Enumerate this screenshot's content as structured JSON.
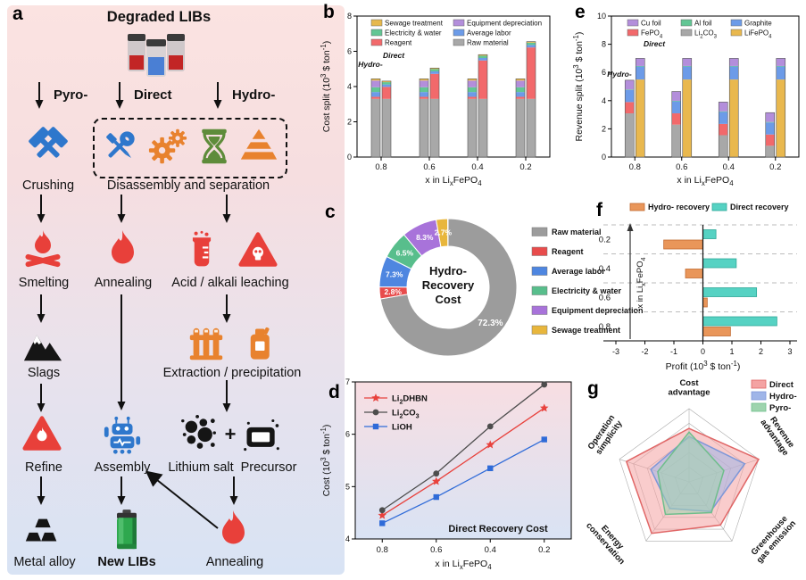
{
  "panels": {
    "a": {
      "label": "a",
      "title": "Degraded LIBs",
      "routes": [
        "Pyro-",
        "Direct",
        "Hydro-"
      ],
      "nodes": {
        "crushing": "Crushing",
        "disassembly": "Disassembly and separation",
        "smelting": "Smelting",
        "annealing": "Annealing",
        "leaching": "Acid / alkali leaching",
        "slags": "Slags",
        "extraction": "Extraction / precipitation",
        "refine": "Refine",
        "assembly": "Assembly",
        "lithium_salt": "Lithium salt",
        "plus": "+",
        "precursor": "Precursor",
        "metal_alloy": "Metal alloy",
        "new_libs": "New LIBs",
        "annealing2": "Annealing"
      },
      "icon_names": [
        "degraded-battery-icon",
        "crossed-hammers-icon",
        "wrench-screwdriver-icon",
        "gears-icon",
        "hourglass-icon",
        "pyramid-icon",
        "campfire-icon",
        "flame-icon",
        "beaker-icon",
        "hazard-skull-icon",
        "mountain-icon",
        "test-tubes-icon",
        "canister-icon",
        "refine-triangle-flame-icon",
        "robot-icon",
        "salt-bubbles-icon",
        "precursor-plate-icon",
        "metal-ingots-icon",
        "new-battery-icon",
        "flame-icon"
      ]
    },
    "b": {
      "label": "b"
    },
    "c": {
      "label": "c"
    },
    "d": {
      "label": "d"
    },
    "e": {
      "label": "e"
    },
    "f": {
      "label": "f"
    },
    "g": {
      "label": "g"
    }
  },
  "chart_data": [
    {
      "id": "cost_split",
      "type": "bar",
      "subtype": "grouped-stacked",
      "title": "",
      "ylabel": "Cost split (10^{3} $ ton^{-1})",
      "xlabel": "x in Li_{x}FePO_{4}",
      "ylim": [
        0,
        8
      ],
      "yticks": [
        0,
        2,
        4,
        6,
        8
      ],
      "categories": [
        "0.8",
        "0.6",
        "0.4",
        "0.2"
      ],
      "group_labels": [
        "Hydro-",
        "Direct"
      ],
      "segments": [
        {
          "name": "Raw material",
          "color": "#a8a8a8",
          "hydro": [
            3.3,
            3.3,
            3.3,
            3.3
          ],
          "direct": [
            3.3,
            3.3,
            3.3,
            3.3
          ]
        },
        {
          "name": "Reagent",
          "color": "#f2696b",
          "hydro": [
            0.12,
            0.12,
            0.12,
            0.12
          ],
          "direct": [
            0.68,
            1.42,
            2.18,
            2.92
          ]
        },
        {
          "name": "Average labor",
          "color": "#6c9be8",
          "hydro": [
            0.27,
            0.27,
            0.27,
            0.27
          ],
          "direct": [
            0.14,
            0.14,
            0.14,
            0.14
          ]
        },
        {
          "name": "Electricity & water",
          "color": "#62c694",
          "hydro": [
            0.27,
            0.27,
            0.27,
            0.27
          ],
          "direct": [
            0.13,
            0.13,
            0.13,
            0.13
          ]
        },
        {
          "name": "Equipment depreciation",
          "color": "#b38edb",
          "hydro": [
            0.38,
            0.38,
            0.38,
            0.38
          ],
          "direct": [
            0,
            0,
            0,
            0
          ]
        },
        {
          "name": "Sewage treatment",
          "color": "#e6b84c",
          "hydro": [
            0.1,
            0.1,
            0.1,
            0.1
          ],
          "direct": [
            0.06,
            0.06,
            0.06,
            0.06
          ]
        }
      ],
      "legend_order": [
        "Sewage treatment",
        "Electricity & water",
        "Reagent",
        "Equipment depreciation",
        "Average labor",
        "Raw material"
      ]
    },
    {
      "id": "hydro_donut",
      "type": "pie",
      "subtype": "donut",
      "center_label": [
        "Hydro-",
        "Recovery",
        "Cost"
      ],
      "slices": [
        {
          "name": "Raw material",
          "pct": 72.3,
          "color": "#9c9c9c"
        },
        {
          "name": "Reagent",
          "pct": 2.8,
          "color": "#e84c4c"
        },
        {
          "name": "Average labor",
          "pct": 7.3,
          "color": "#4e86e0"
        },
        {
          "name": "Electricity & water",
          "pct": 6.5,
          "color": "#58be8c"
        },
        {
          "name": "Equipment depreciation",
          "pct": 8.3,
          "color": "#a873da"
        },
        {
          "name": "Sewage treatment",
          "pct": 2.7,
          "color": "#e8b63c"
        }
      ],
      "legend_order": [
        "Raw material",
        "Reagent",
        "Average labor",
        "Electricity & water",
        "Equipment depreciation",
        "Sewage treatment"
      ]
    },
    {
      "id": "direct_cost",
      "type": "line",
      "ylabel": "Cost (10^{3} $ ton^{-1})",
      "xlabel": "x in Li_{x}FePO_{4}",
      "ylim": [
        4,
        7
      ],
      "yticks": [
        4,
        5,
        6,
        7
      ],
      "categories": [
        "0.8",
        "0.6",
        "0.4",
        "0.2"
      ],
      "annotation": "Direct Recovery Cost",
      "series": [
        {
          "name": "Li_{2}DHBN",
          "color": "#e8413c",
          "marker": "star",
          "values": [
            4.45,
            5.1,
            5.8,
            6.5
          ]
        },
        {
          "name": "Li_{2}CO_{3}",
          "color": "#4d4d4d",
          "marker": "circle",
          "values": [
            4.55,
            5.25,
            6.15,
            6.95
          ]
        },
        {
          "name": "LiOH",
          "color": "#2f6bd8",
          "marker": "square",
          "values": [
            4.3,
            4.8,
            5.35,
            5.9
          ]
        }
      ]
    },
    {
      "id": "revenue_split",
      "type": "bar",
      "subtype": "grouped-stacked",
      "ylabel": "Revenue split (10^{3} $ ton^{-1})",
      "xlabel": "x in Li_{x}FePO_{4}",
      "ylim": [
        0,
        10
      ],
      "yticks": [
        0,
        2,
        4,
        6,
        8,
        10
      ],
      "categories": [
        "0.8",
        "0.6",
        "0.4",
        "0.2"
      ],
      "group_labels": [
        "Hydro-",
        "Direct"
      ],
      "segments": [
        {
          "name": "Li_{2}CO_{3}",
          "color": "#a8a8a8",
          "hydro": [
            3.1,
            2.3,
            1.55,
            0.8
          ],
          "direct": [
            0,
            0,
            0,
            0
          ]
        },
        {
          "name": "LiFePO_{4}",
          "color": "#e9b84e",
          "hydro": [
            0,
            0,
            0,
            0
          ],
          "direct": [
            5.5,
            5.5,
            5.5,
            5.5
          ]
        },
        {
          "name": "FePO_{4}",
          "color": "#f2696b",
          "hydro": [
            0.8,
            0.8,
            0.8,
            0.8
          ],
          "direct": [
            0,
            0,
            0,
            0
          ]
        },
        {
          "name": "Graphite",
          "color": "#6c9be8",
          "hydro": [
            0.85,
            0.85,
            0.85,
            0.85
          ],
          "direct": [
            0.92,
            0.92,
            0.92,
            0.92
          ]
        },
        {
          "name": "Al foil",
          "color": "#62c694",
          "hydro": [
            0.04,
            0.04,
            0.04,
            0.04
          ],
          "direct": [
            0.04,
            0.04,
            0.04,
            0.04
          ]
        },
        {
          "name": "Cu foil",
          "color": "#b38edb",
          "hydro": [
            0.66,
            0.66,
            0.66,
            0.66
          ],
          "direct": [
            0.54,
            0.54,
            0.54,
            0.54
          ]
        }
      ],
      "legend_order": [
        "Cu foil",
        "Al foil",
        "Graphite",
        "FePO_{4}",
        "Li_{2}CO_{3}",
        "LiFePO_{4}"
      ]
    },
    {
      "id": "profit",
      "type": "bar",
      "subtype": "horizontal-grouped",
      "xlabel": "Profit (10^{3} $ ton^{-1})",
      "ylabel": "x in Li_{x}FePO_{4}",
      "xlim": [
        -3,
        3
      ],
      "xticks": [
        -3,
        -2,
        -1,
        0,
        1,
        2,
        3
      ],
      "categories": [
        "0.2",
        "0.4",
        "0.6",
        "0.8"
      ],
      "series": [
        {
          "name": "Hydro- recovery",
          "color": "#e9965a",
          "stroke": "#c26b32",
          "values": [
            -1.35,
            -0.6,
            0.15,
            0.95
          ]
        },
        {
          "name": "Direct recovery",
          "color": "#56d2c3",
          "stroke": "#2fa898",
          "values": [
            0.45,
            1.15,
            1.85,
            2.55
          ]
        }
      ]
    },
    {
      "id": "radar",
      "type": "radar",
      "levels": 5,
      "axes": [
        "Cost advantage",
        "Revenue advantage",
        "Greenhouse gas emission",
        "Energy conservation",
        "Operation simplicity"
      ],
      "series": [
        {
          "name": "Direct",
          "fill": "#f4a3a3",
          "stroke": "#e06666",
          "values": [
            0.73,
            1.0,
            0.73,
            0.87,
            0.9
          ]
        },
        {
          "name": "Hydro-",
          "fill": "#9fb5e8",
          "stroke": "#7e97d8",
          "values": [
            0.62,
            0.8,
            0.5,
            0.45,
            0.55
          ]
        },
        {
          "name": "Pyro-",
          "fill": "#9ed4ae",
          "stroke": "#6fbe8c",
          "values": [
            0.68,
            0.5,
            0.52,
            0.55,
            0.45
          ]
        }
      ]
    }
  ]
}
